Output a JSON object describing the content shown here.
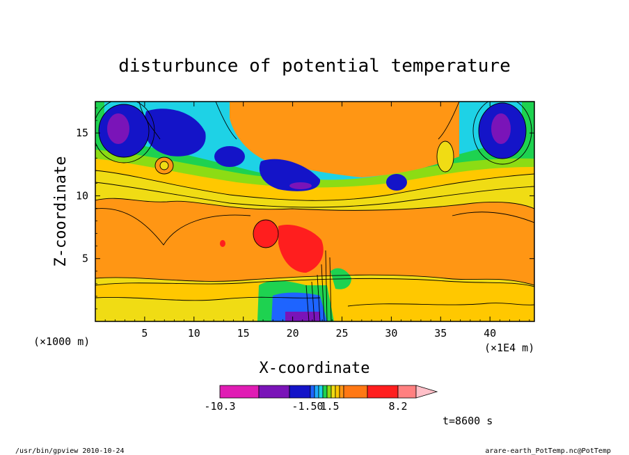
{
  "chart_data": {
    "type": "heatmap",
    "title": "disturbunce of potential temperature",
    "xlabel": "X-coordinate",
    "ylabel": "Z-coordinate",
    "x_unit": "(×1E4 m)",
    "y_unit": "(×1000 m)",
    "xlim": [
      0,
      44.5
    ],
    "ylim": [
      0,
      17.5
    ],
    "x_ticks": [
      5,
      10,
      15,
      20,
      25,
      30,
      35,
      40
    ],
    "y_ticks": [
      5,
      10,
      15
    ],
    "grid": false,
    "colorbar": {
      "colors": [
        "#e01cb4",
        "#7a14b8",
        "#1414c8",
        "#1e64ff",
        "#1eaaff",
        "#1ed2e6",
        "#1ed250",
        "#8cdc14",
        "#f0dc14",
        "#ffc800",
        "#ff9614",
        "#ff7814",
        "#ff1e1e",
        "#ff8080",
        "#ffc0c8"
      ],
      "tick_labels": [
        "-10.3",
        "-1.50",
        "1.5",
        "8.2"
      ]
    },
    "time_label": "t=8600 s",
    "notes": {
      "left": "/usr/bin/gpview  2010-10-24",
      "right": "arare-earth_PotTemp.nc@PotTemp"
    }
  }
}
